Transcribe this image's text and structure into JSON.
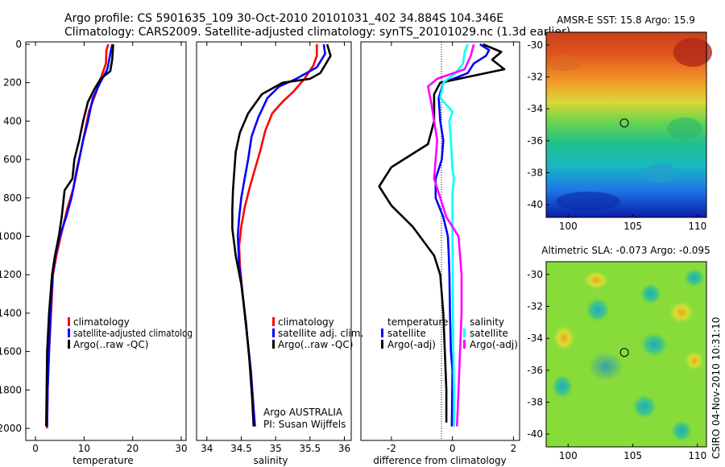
{
  "header": {
    "line1": "Argo profile: CS 5901635_109 30-Oct-2010 20101031_402 34.884S 104.346E",
    "line2": "Climatology: CARS2009. Satellite-adjusted climatology: synTS_20101029.nc (1.3d earlier)"
  },
  "credit": "CSIRO 04-Nov-2010 10:31:10",
  "colors": {
    "red": "#ff0000",
    "blue": "#0000ff",
    "black": "#000000",
    "cyan": "#00ffff",
    "magenta": "#ff00ff"
  },
  "chart_data": [
    {
      "id": "temperature",
      "type": "line",
      "xlabel": "temperature",
      "ylabel": "",
      "xlim": [
        -2,
        31
      ],
      "ylim": [
        2000,
        0
      ],
      "xticks": [
        0,
        10,
        20,
        30
      ],
      "yticks": [
        0,
        200,
        400,
        600,
        800,
        1000,
        1200,
        1400,
        1600,
        1800,
        2000
      ],
      "legend": [
        "climatology",
        "satellite-adjusted climatolog",
        "Argo(..raw -QC)"
      ],
      "series": [
        {
          "name": "climatology",
          "color": "red",
          "points": [
            [
              15.0,
              0
            ],
            [
              14.6,
              30
            ],
            [
              14.5,
              100
            ],
            [
              13.8,
              150
            ],
            [
              12.5,
              250
            ],
            [
              11.0,
              350
            ],
            [
              10.2,
              450
            ],
            [
              9.4,
              550
            ],
            [
              8.5,
              650
            ],
            [
              7.8,
              750
            ],
            [
              6.6,
              850
            ],
            [
              5.2,
              1000
            ],
            [
              4.3,
              1100
            ],
            [
              3.6,
              1200
            ],
            [
              3.2,
              1400
            ],
            [
              2.8,
              1600
            ],
            [
              2.5,
              1800
            ],
            [
              2.4,
              2000
            ]
          ]
        },
        {
          "name": "satellite-adjusted climatolog",
          "color": "blue",
          "points": [
            [
              15.8,
              0
            ],
            [
              15.4,
              50
            ],
            [
              14.8,
              130
            ],
            [
              13.3,
              200
            ],
            [
              11.8,
              280
            ],
            [
              10.8,
              400
            ],
            [
              9.8,
              500
            ],
            [
              9.0,
              600
            ],
            [
              8.2,
              700
            ],
            [
              7.4,
              800
            ],
            [
              6.3,
              900
            ],
            [
              5.0,
              1000
            ],
            [
              4.1,
              1100
            ],
            [
              3.5,
              1200
            ],
            [
              3.1,
              1400
            ],
            [
              2.8,
              1600
            ],
            [
              2.5,
              1800
            ],
            [
              2.4,
              1990
            ]
          ]
        },
        {
          "name": "Argo(..raw -QC)",
          "color": "black",
          "points": [
            [
              16.0,
              0
            ],
            [
              15.8,
              80
            ],
            [
              15.4,
              140
            ],
            [
              13.4,
              180
            ],
            [
              12.2,
              230
            ],
            [
              10.8,
              300
            ],
            [
              9.8,
              400
            ],
            [
              9.0,
              500
            ],
            [
              8.0,
              600
            ],
            [
              7.6,
              700
            ],
            [
              6.0,
              760
            ],
            [
              5.4,
              900
            ],
            [
              4.8,
              1000
            ],
            [
              4.0,
              1100
            ],
            [
              3.4,
              1200
            ],
            [
              2.8,
              1400
            ],
            [
              2.4,
              1600
            ],
            [
              2.3,
              1800
            ],
            [
              2.2,
              1990
            ]
          ]
        }
      ],
      "annotations": []
    },
    {
      "id": "salinity",
      "type": "line",
      "xlabel": "salinity",
      "ylabel": "",
      "xlim": [
        33.85,
        36.1
      ],
      "ylim": [
        2000,
        0
      ],
      "xticks": [
        34,
        34.5,
        35,
        35.5,
        36
      ],
      "yticks": [],
      "legend": [
        "climatology",
        "satellite adj. clim.",
        "Argo(..raw -QC)"
      ],
      "series": [
        {
          "name": "climatology",
          "color": "red",
          "points": [
            [
              35.6,
              0
            ],
            [
              35.6,
              60
            ],
            [
              35.55,
              110
            ],
            [
              35.42,
              180
            ],
            [
              35.25,
              250
            ],
            [
              35.1,
              300
            ],
            [
              34.95,
              360
            ],
            [
              34.85,
              450
            ],
            [
              34.78,
              550
            ],
            [
              34.7,
              650
            ],
            [
              34.62,
              750
            ],
            [
              34.55,
              850
            ],
            [
              34.5,
              950
            ],
            [
              34.47,
              1050
            ],
            [
              34.48,
              1150
            ],
            [
              34.52,
              1300
            ],
            [
              34.58,
              1500
            ],
            [
              34.64,
              1700
            ],
            [
              34.68,
              1900
            ],
            [
              34.7,
              1990
            ]
          ]
        },
        {
          "name": "satellite adj. clim.",
          "color": "blue",
          "points": [
            [
              35.7,
              0
            ],
            [
              35.72,
              50
            ],
            [
              35.6,
              120
            ],
            [
              35.3,
              180
            ],
            [
              35.05,
              220
            ],
            [
              34.88,
              280
            ],
            [
              34.75,
              380
            ],
            [
              34.65,
              480
            ],
            [
              34.6,
              600
            ],
            [
              34.55,
              700
            ],
            [
              34.5,
              800
            ],
            [
              34.47,
              900
            ],
            [
              34.45,
              1000
            ],
            [
              34.47,
              1150
            ],
            [
              34.52,
              1300
            ],
            [
              34.58,
              1500
            ],
            [
              34.64,
              1700
            ],
            [
              34.68,
              1900
            ],
            [
              34.7,
              1990
            ]
          ]
        },
        {
          "name": "Argo(..raw -QC)",
          "color": "black",
          "points": [
            [
              35.75,
              0
            ],
            [
              35.8,
              60
            ],
            [
              35.65,
              150
            ],
            [
              35.5,
              180
            ],
            [
              35.1,
              200
            ],
            [
              34.8,
              260
            ],
            [
              34.6,
              360
            ],
            [
              34.48,
              460
            ],
            [
              34.42,
              560
            ],
            [
              34.4,
              660
            ],
            [
              34.38,
              760
            ],
            [
              34.37,
              860
            ],
            [
              34.37,
              960
            ],
            [
              34.42,
              1100
            ],
            [
              34.5,
              1250
            ],
            [
              34.57,
              1450
            ],
            [
              34.62,
              1650
            ],
            [
              34.66,
              1850
            ],
            [
              34.68,
              1990
            ]
          ]
        }
      ],
      "annotations": [
        "Argo AUSTRALIA",
        "PI: Susan Wijffels"
      ]
    },
    {
      "id": "difference",
      "type": "line",
      "xlabel": "difference from climatology",
      "ylabel": "",
      "xlim": [
        -3.0,
        2.2
      ],
      "ylim": [
        2000,
        0
      ],
      "xticks": [
        -2,
        0,
        2
      ],
      "yticks": [],
      "legend": [
        "temperature",
        "satellite",
        "Argo(-adj)",
        "salinity",
        "satellite",
        "Argo(-adj)"
      ],
      "series": [
        {
          "name": "temperature satellite",
          "color": "blue",
          "points": [
            [
              0.9,
              0
            ],
            [
              1.2,
              30
            ],
            [
              1.1,
              60
            ],
            [
              0.7,
              100
            ],
            [
              0.5,
              150
            ],
            [
              -0.3,
              200
            ],
            [
              -0.45,
              280
            ],
            [
              -0.4,
              400
            ],
            [
              -0.3,
              500
            ],
            [
              -0.35,
              600
            ],
            [
              -0.55,
              700
            ],
            [
              -0.55,
              800
            ],
            [
              -0.3,
              900
            ],
            [
              -0.15,
              1000
            ],
            [
              -0.12,
              1100
            ],
            [
              -0.1,
              1200
            ],
            [
              -0.08,
              1400
            ],
            [
              -0.05,
              1600
            ],
            [
              0,
              1700
            ],
            [
              -0.02,
              1990
            ]
          ]
        },
        {
          "name": "temperature Argo(-adj)",
          "color": "black",
          "points": [
            [
              1.0,
              0
            ],
            [
              1.6,
              40
            ],
            [
              1.3,
              80
            ],
            [
              1.7,
              130
            ],
            [
              -0.4,
              200
            ],
            [
              -0.6,
              260
            ],
            [
              -0.6,
              400
            ],
            [
              -0.8,
              520
            ],
            [
              -2.0,
              640
            ],
            [
              -2.4,
              740
            ],
            [
              -2.0,
              840
            ],
            [
              -1.3,
              950
            ],
            [
              -0.6,
              1100
            ],
            [
              -0.4,
              1200
            ],
            [
              -0.3,
              1400
            ],
            [
              -0.25,
              1600
            ],
            [
              -0.2,
              1800
            ],
            [
              -0.2,
              1970
            ]
          ]
        },
        {
          "name": "salinity satellite",
          "color": "cyan",
          "points": [
            [
              0.5,
              0
            ],
            [
              0.4,
              40
            ],
            [
              0.35,
              100
            ],
            [
              0.1,
              150
            ],
            [
              -0.3,
              200
            ],
            [
              -0.4,
              280
            ],
            [
              0.0,
              350
            ],
            [
              -0.1,
              400
            ],
            [
              -0.05,
              500
            ],
            [
              0.0,
              650
            ],
            [
              0.05,
              700
            ],
            [
              0.0,
              780
            ],
            [
              0.0,
              1000
            ],
            [
              0.02,
              1500
            ],
            [
              0.05,
              1800
            ],
            [
              0.05,
              1990
            ]
          ]
        },
        {
          "name": "salinity Argo(-adj)",
          "color": "magenta",
          "points": [
            [
              0.7,
              0
            ],
            [
              0.6,
              60
            ],
            [
              0.4,
              130
            ],
            [
              -0.5,
              180
            ],
            [
              -0.8,
              220
            ],
            [
              -0.7,
              300
            ],
            [
              -0.6,
              400
            ],
            [
              -0.5,
              500
            ],
            [
              -0.55,
              600
            ],
            [
              -0.6,
              700
            ],
            [
              -0.4,
              800
            ],
            [
              -0.2,
              900
            ],
            [
              0.2,
              1000
            ],
            [
              0.25,
              1100
            ],
            [
              0.3,
              1200
            ],
            [
              0.3,
              1400
            ],
            [
              0.25,
              1600
            ],
            [
              0.2,
              1800
            ],
            [
              0.15,
              1990
            ]
          ]
        }
      ],
      "annotations": []
    },
    {
      "id": "sst_map",
      "type": "heatmap",
      "title": "AMSR-E SST: 15.8 Argo: 15.9",
      "xlim": [
        98.3,
        110.7
      ],
      "ylim": [
        -40.8,
        -29.2
      ],
      "xticks": [
        100,
        105,
        110
      ],
      "yticks": [
        -30,
        -32,
        -34,
        -36,
        -38,
        -40
      ],
      "marker": {
        "lon": 104.346,
        "lat": -34.884
      }
    },
    {
      "id": "sla_map",
      "type": "heatmap",
      "title": "Altimetric SLA: -0.073 Argo: -0.095",
      "xlim": [
        98.3,
        110.7
      ],
      "ylim": [
        -40.8,
        -29.2
      ],
      "xticks": [
        100,
        105,
        110
      ],
      "yticks": [
        -30,
        -32,
        -34,
        -36,
        -38,
        -40
      ],
      "marker": {
        "lon": 104.346,
        "lat": -34.884
      }
    }
  ]
}
